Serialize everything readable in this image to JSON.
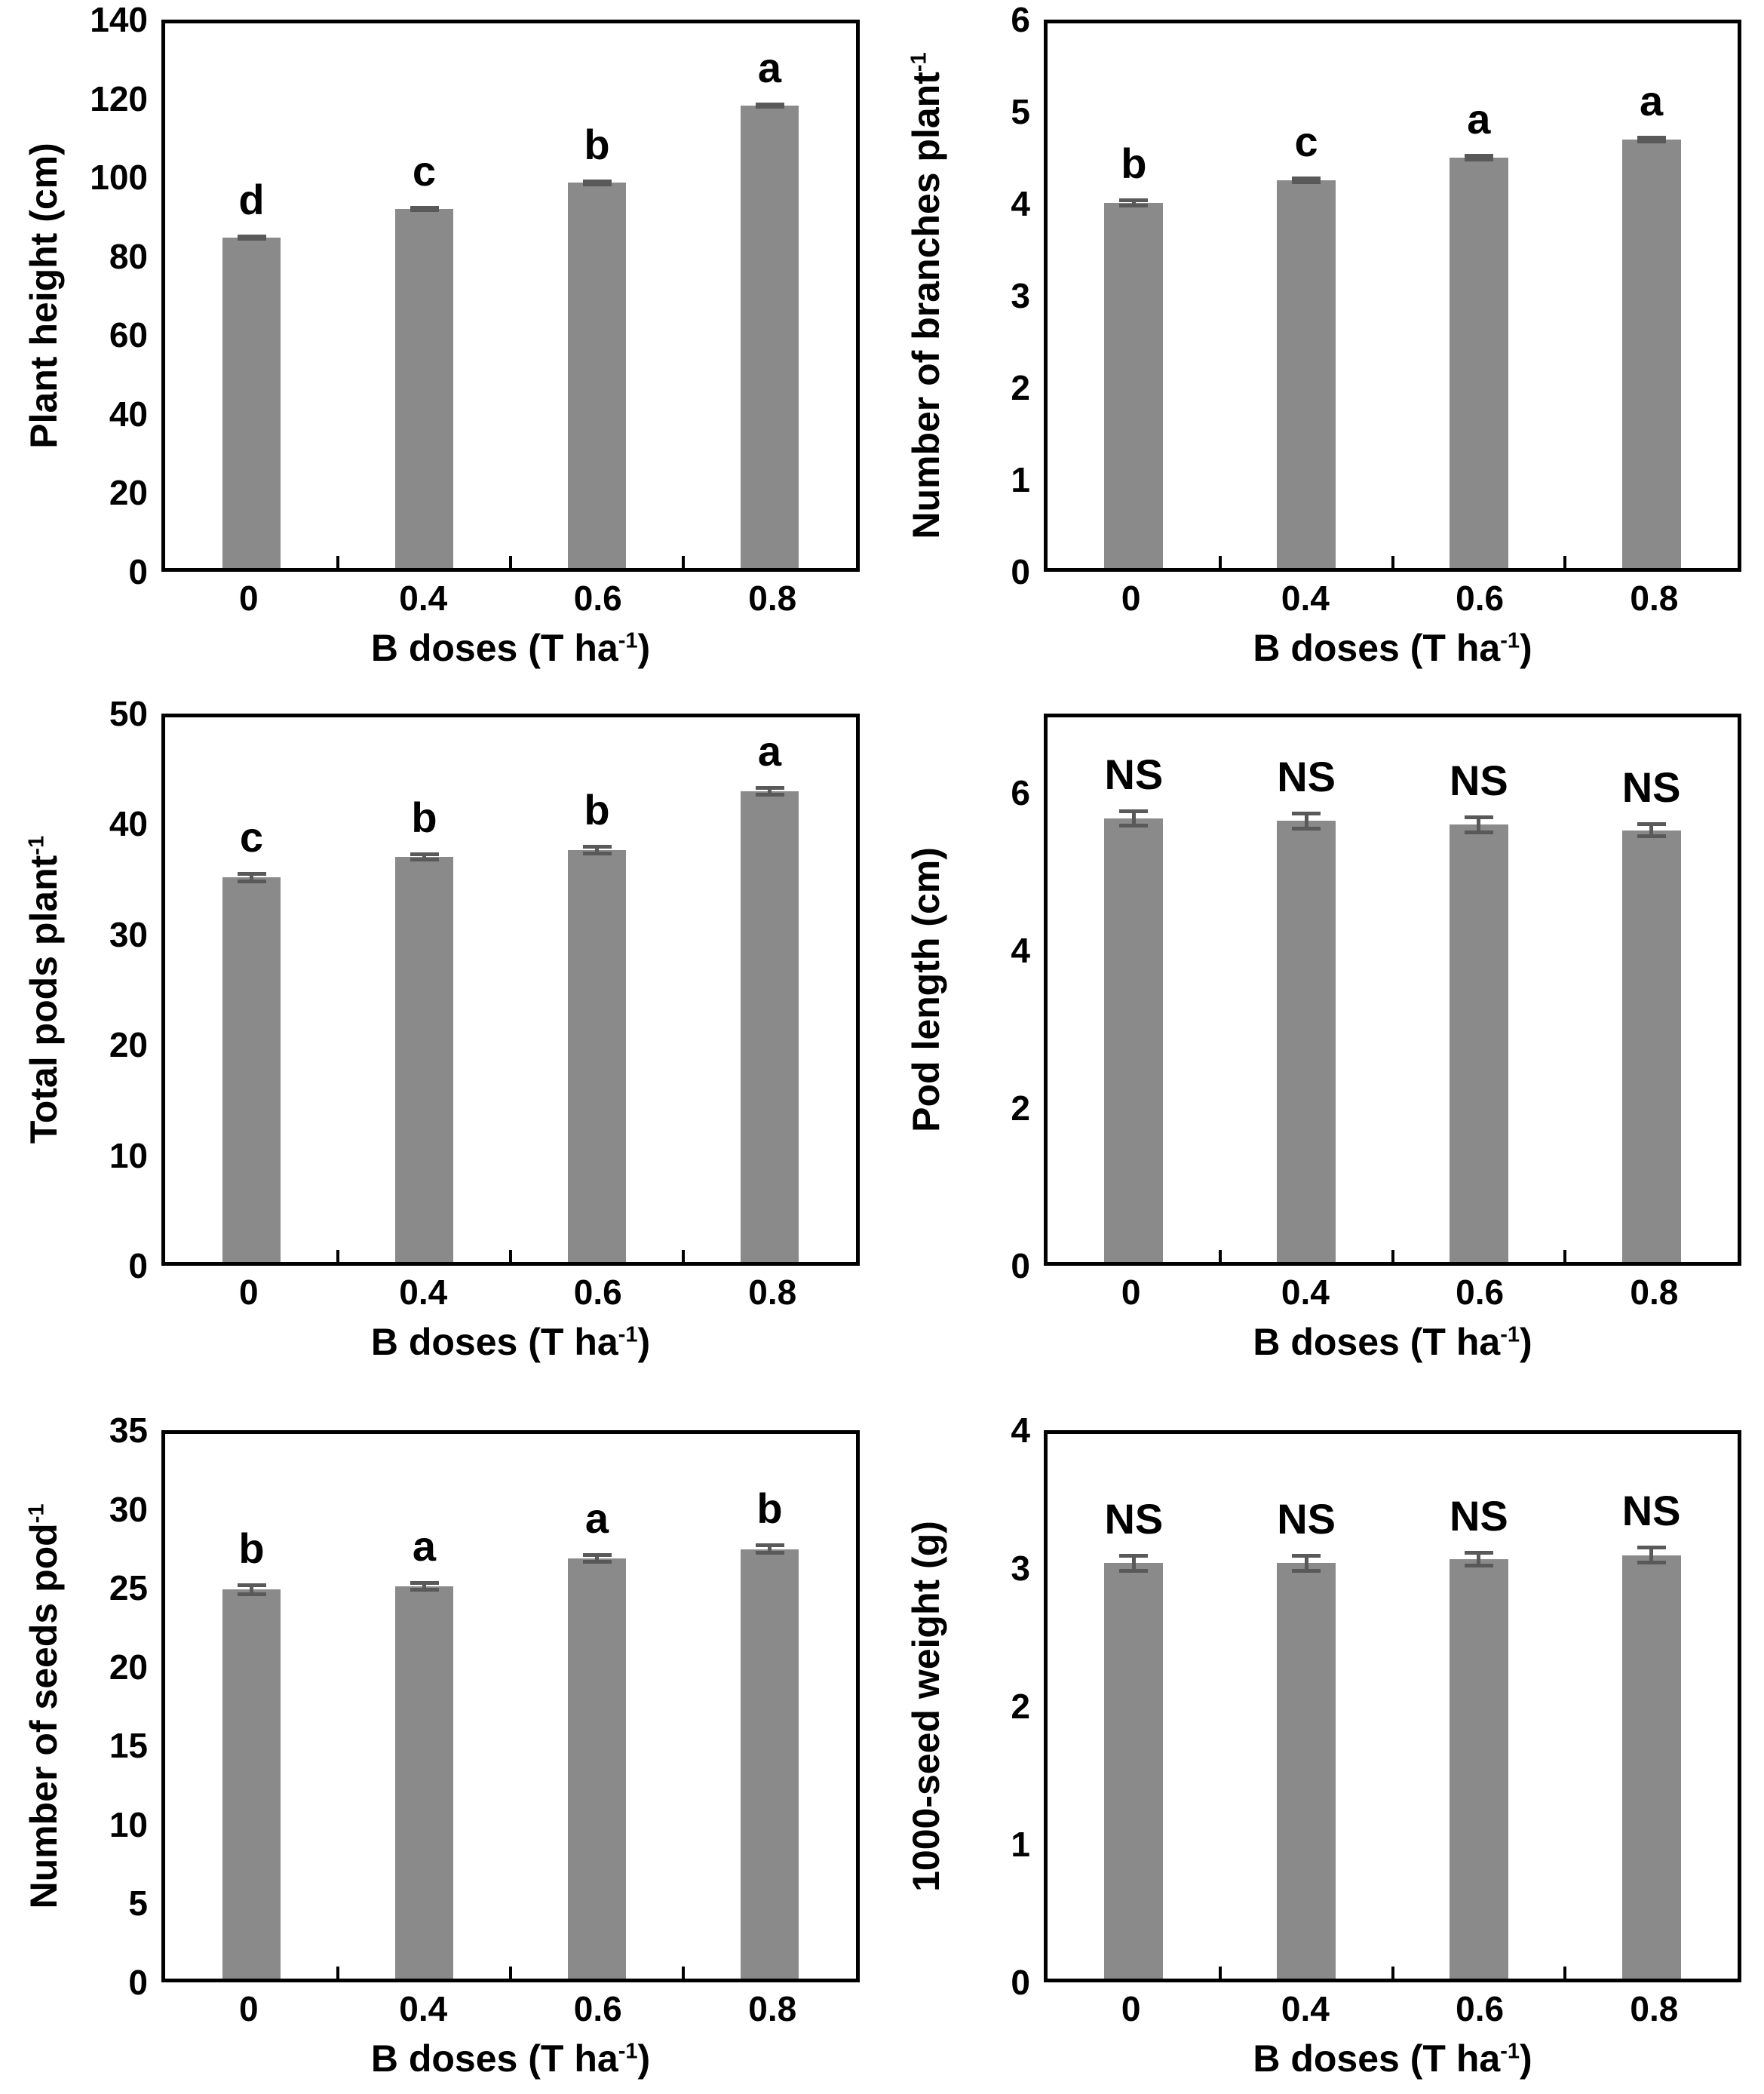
{
  "figure": {
    "background_color": "#ffffff",
    "bar_color": "#8a8a8a",
    "error_bar_color": "#595959",
    "axis_color": "#000000",
    "text_color": "#000000",
    "layout": "2 columns x 3 rows of bar charts, no gridlines, boxed plot areas"
  },
  "chart_data": [
    {
      "id": "plant-height",
      "type": "bar",
      "ylabel_main": "Plant height (cm)",
      "ylabel_sup": "",
      "xlabel": {
        "pre": "B doses (T ha",
        "sup": "-1",
        "post": ")"
      },
      "categories": [
        "0",
        "0.4",
        "0.6",
        "0.8"
      ],
      "values": [
        85,
        92.3,
        99,
        118.8
      ],
      "errors": [
        0.8,
        0.8,
        0.8,
        0.8
      ],
      "sig_letters": [
        "d",
        "c",
        "b",
        "a"
      ],
      "ylim": [
        0,
        140
      ],
      "grid": false,
      "legend": "none",
      "yticks": [
        {
          "label": "0",
          "value": 0
        },
        {
          "label": "20",
          "value": 20
        },
        {
          "label": "40",
          "value": 40
        },
        {
          "label": "60",
          "value": 60
        },
        {
          "label": "80",
          "value": 80
        },
        {
          "label": "100",
          "value": 100
        },
        {
          "label": "120",
          "value": 120
        },
        {
          "label": "140",
          "value": 140
        }
      ]
    },
    {
      "id": "branches-per-plant",
      "type": "bar",
      "ylabel_main": "Number of branches plant",
      "ylabel_sup": "-1",
      "xlabel": {
        "pre": "B doses (T ha",
        "sup": "-1",
        "post": ")"
      },
      "categories": [
        "0",
        "0.4",
        "0.6",
        "0.8"
      ],
      "values": [
        4.02,
        4.27,
        4.52,
        4.72
      ],
      "errors": [
        0.05,
        0.04,
        0.04,
        0.04
      ],
      "sig_letters": [
        "b",
        "c",
        "a",
        "a"
      ],
      "ylim": [
        0,
        6
      ],
      "grid": false,
      "legend": "none",
      "yticks": [
        {
          "label": "0",
          "value": 0
        },
        {
          "label": "1",
          "value": 1
        },
        {
          "label": "2",
          "value": 2
        },
        {
          "label": "3",
          "value": 3
        },
        {
          "label": "4",
          "value": 4
        },
        {
          "label": "5",
          "value": 5
        },
        {
          "label": "6",
          "value": 6
        }
      ]
    },
    {
      "id": "total-pods-per-plant",
      "type": "bar",
      "ylabel_main": "Total pods plant",
      "ylabel_sup": "-1",
      "xlabel": {
        "pre": "B doses (T ha",
        "sup": "-1",
        "post": ")"
      },
      "categories": [
        "0",
        "0.4",
        "0.6",
        "0.8"
      ],
      "values": [
        35.3,
        37.2,
        37.8,
        43.2
      ],
      "errors": [
        0.5,
        0.4,
        0.5,
        0.5
      ],
      "sig_letters": [
        "c",
        "b",
        "b",
        "a"
      ],
      "ylim": [
        0,
        50
      ],
      "grid": false,
      "legend": "none",
      "yticks": [
        {
          "label": "0",
          "value": 0
        },
        {
          "label": "10",
          "value": 10
        },
        {
          "label": "20",
          "value": 20
        },
        {
          "label": "30",
          "value": 30
        },
        {
          "label": "40",
          "value": 40
        },
        {
          "label": "50",
          "value": 50
        }
      ]
    },
    {
      "id": "pod-length",
      "type": "bar",
      "ylabel_main": "Pod length (cm)",
      "ylabel_sup": "",
      "xlabel": {
        "pre": "B doses (T ha",
        "sup": "-1",
        "post": ")"
      },
      "categories": [
        "0",
        "0.4",
        "0.6",
        "0.8"
      ],
      "values": [
        5.7,
        5.67,
        5.62,
        5.55
      ],
      "errors": [
        0.12,
        0.12,
        0.12,
        0.1
      ],
      "sig_letters": [
        "NS",
        "NS",
        "NS",
        "NS"
      ],
      "ylim": [
        0,
        7
      ],
      "grid": false,
      "legend": "none",
      "yticks": [
        {
          "label": "0",
          "value": 0
        },
        {
          "label": "2",
          "value": 2
        },
        {
          "label": "4",
          "value": 4
        },
        {
          "label": "6",
          "value": 6
        }
      ]
    },
    {
      "id": "seeds-per-pod",
      "type": "bar",
      "ylabel_main": "Number of seeds pod",
      "ylabel_sup": "-1",
      "xlabel": {
        "pre": "B doses (T ha",
        "sup": "-1",
        "post": ")"
      },
      "categories": [
        "0",
        "0.4",
        "0.6",
        "0.8"
      ],
      "values": [
        25,
        25.2,
        27,
        27.6
      ],
      "errors": [
        0.4,
        0.35,
        0.35,
        0.35
      ],
      "sig_letters": [
        "b",
        "a",
        "a",
        "b"
      ],
      "ylim": [
        0,
        35
      ],
      "grid": false,
      "legend": "none",
      "yticks": [
        {
          "label": "0",
          "value": 0
        },
        {
          "label": "5",
          "value": 5
        },
        {
          "label": "10",
          "value": 10
        },
        {
          "label": "15",
          "value": 15
        },
        {
          "label": "20",
          "value": 20
        },
        {
          "label": "25",
          "value": 25
        },
        {
          "label": "30",
          "value": 30
        },
        {
          "label": "35",
          "value": 35
        }
      ]
    },
    {
      "id": "thousand-seed-weight",
      "type": "bar",
      "ylabel_main": "1000-seed weight (g)",
      "ylabel_sup": "",
      "xlabel": {
        "pre": "B doses (T ha",
        "sup": "-1",
        "post": ")"
      },
      "categories": [
        "0",
        "0.4",
        "0.6",
        "0.8"
      ],
      "values": [
        3.05,
        3.05,
        3.08,
        3.11
      ],
      "errors": [
        0.07,
        0.07,
        0.06,
        0.07
      ],
      "sig_letters": [
        "NS",
        "NS",
        "NS",
        "NS"
      ],
      "ylim": [
        0,
        4
      ],
      "grid": false,
      "legend": "none",
      "yticks": [
        {
          "label": "0",
          "value": 0
        },
        {
          "label": "1",
          "value": 1
        },
        {
          "label": "2",
          "value": 2
        },
        {
          "label": "3",
          "value": 3
        },
        {
          "label": "4",
          "value": 4
        }
      ]
    }
  ]
}
